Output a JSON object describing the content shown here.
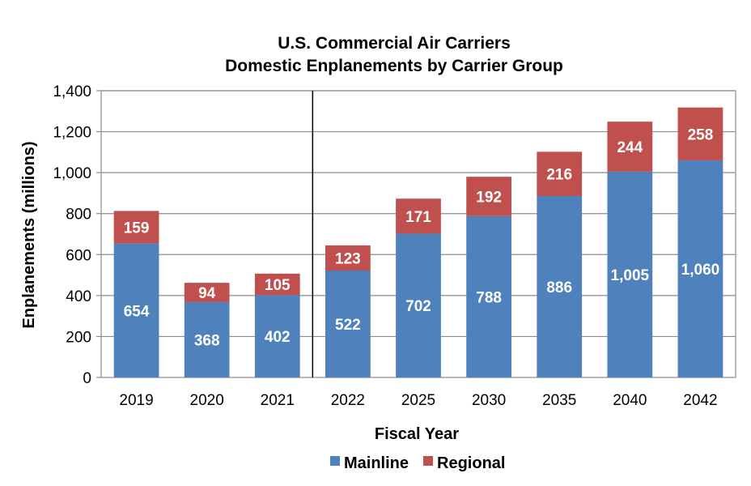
{
  "chart_data": {
    "type": "bar",
    "stacked": true,
    "title": "U.S. Commercial Air Carriers",
    "subtitle": "Domestic Enplanements by Carrier Group",
    "xlabel": "Fiscal Year",
    "ylabel": "Enplanements (millions)",
    "categories": [
      "2019",
      "2020",
      "2021",
      "2022",
      "2025",
      "2030",
      "2035",
      "2040",
      "2042"
    ],
    "series": [
      {
        "name": "Mainline",
        "color": "#4f81bd",
        "values": [
          654,
          368,
          402,
          522,
          702,
          788,
          886,
          1005,
          1060
        ],
        "labels": [
          "654",
          "368",
          "402",
          "522",
          "702",
          "788",
          "886",
          "1,005",
          "1,060"
        ]
      },
      {
        "name": "Regional",
        "color": "#c0504d",
        "values": [
          159,
          94,
          105,
          123,
          171,
          192,
          216,
          244,
          258
        ],
        "labels": [
          "159",
          "94",
          "105",
          "123",
          "171",
          "192",
          "216",
          "244",
          "258"
        ]
      }
    ],
    "ylim": [
      0,
      1400
    ],
    "yticks": [
      "0",
      "200",
      "400",
      "600",
      "800",
      "1,000",
      "1,200",
      "1,400"
    ],
    "grid": true,
    "legend": "bottom",
    "divider_after_category": "2021"
  }
}
